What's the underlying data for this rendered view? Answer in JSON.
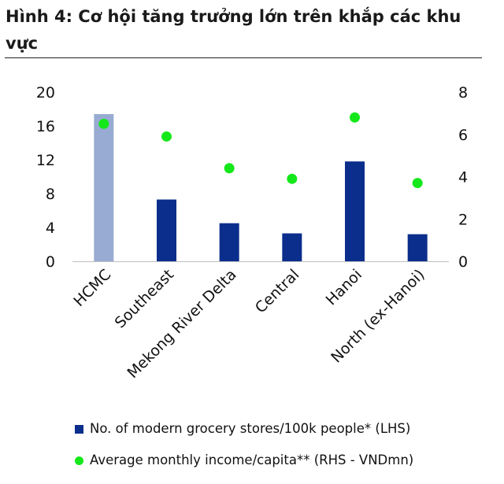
{
  "title": "Hình 4: Cơ hội tăng trưởng lớn trên khắp các khu vực",
  "legend": {
    "bars": "No. of modern grocery stores/100k people* (LHS)",
    "dots": "Average monthly income/capita** (RHS - VNDmn)"
  },
  "colors": {
    "bar": "#0b2e8c",
    "bar_highlight": "#98abd2",
    "dot": "#14e81a"
  },
  "chart_data": {
    "type": "bar",
    "title": "Hình 4: Cơ hội tăng trưởng lớn trên khắp các khu vực",
    "categories": [
      "HCMC",
      "Southeast",
      "Mekong River Delta",
      "Central",
      "Hanoi",
      "North (ex-Hanoi)"
    ],
    "series": [
      {
        "name": "No. of modern grocery stores/100k people* (LHS)",
        "type": "bar",
        "axis": "left",
        "values": [
          17.4,
          7.3,
          4.5,
          3.3,
          11.8,
          3.2
        ],
        "highlight_index": 0
      },
      {
        "name": "Average monthly income/capita** (RHS - VNDmn)",
        "type": "scatter",
        "axis": "right",
        "values": [
          6.5,
          5.9,
          4.4,
          3.9,
          6.8,
          3.7
        ]
      }
    ],
    "ylim_left": [
      0,
      20
    ],
    "yticks_left": [
      0,
      4,
      8,
      12,
      16,
      20
    ],
    "ylim_right": [
      0,
      8
    ],
    "yticks_right": [
      0,
      2,
      4,
      6,
      8
    ],
    "grid": false,
    "legend_position": "bottom"
  }
}
